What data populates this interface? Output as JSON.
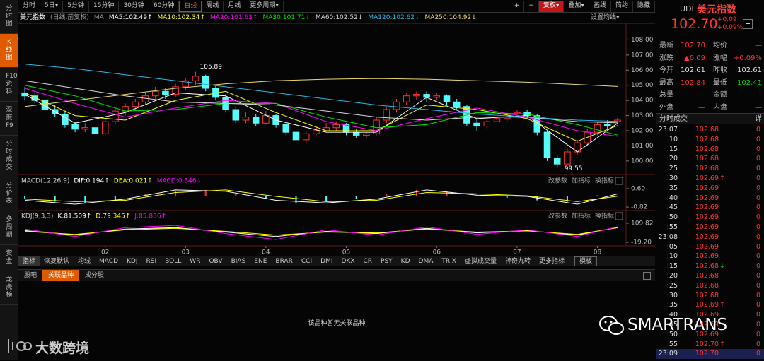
{
  "sidebar": {
    "tabs": [
      "分时图",
      "K线图",
      "F10资料",
      "深度F9",
      "分时成交",
      "分价表",
      "多周期",
      "资金",
      "龙虎榜"
    ],
    "active": 1
  },
  "toolbar": {
    "periods": [
      "分时",
      "5日▾",
      "5分钟",
      "15分钟",
      "30分钟",
      "60分钟",
      "日线",
      "周线",
      "月线",
      "更多周期▾"
    ],
    "active": 6,
    "tools": [
      "+",
      "−",
      "复权▾",
      "叠加▾",
      "画线",
      "简约",
      "隐藏"
    ],
    "highlight_tool": 2
  },
  "info": {
    "name": "美元指数",
    "note": "(日线,前复权)",
    "ma_tag": "MA",
    "settings": "设置均线▾"
  },
  "chart_data": {
    "type": "candlestick",
    "ylim": [
      99.2,
      109.0
    ],
    "yticks": [
      {
        "value": 108,
        "label": "108.00"
      },
      {
        "value": 107,
        "label": "107.00"
      },
      {
        "value": 106,
        "label": "106.00"
      },
      {
        "value": 105,
        "label": "105.00"
      },
      {
        "value": 104,
        "label": "104.00"
      },
      {
        "value": 103,
        "label": "103.00"
      },
      {
        "value": 102,
        "label": "102.00"
      },
      {
        "value": 101,
        "label": "101.00"
      },
      {
        "value": 100,
        "label": "100.00"
      }
    ],
    "up_color": "#ff3232",
    "down_color": "#54fcfc",
    "candles": [
      [
        104.5,
        104.9,
        104.0,
        104.3
      ],
      [
        104.3,
        104.6,
        103.8,
        104.0
      ],
      [
        104.0,
        104.2,
        103.2,
        103.4
      ],
      [
        103.4,
        103.7,
        102.9,
        103.1
      ],
      [
        103.1,
        103.3,
        102.2,
        102.4
      ],
      [
        102.4,
        102.6,
        101.9,
        102.1
      ],
      [
        102.1,
        102.5,
        101.9,
        102.2
      ],
      [
        102.2,
        102.4,
        101.3,
        101.8
      ],
      [
        101.8,
        102.8,
        101.6,
        102.6
      ],
      [
        102.6,
        103.5,
        102.4,
        103.3
      ],
      [
        103.3,
        103.8,
        103.0,
        103.6
      ],
      [
        103.6,
        104.1,
        103.3,
        103.9
      ],
      [
        103.9,
        104.5,
        103.7,
        104.3
      ],
      [
        104.3,
        104.9,
        104.1,
        104.6
      ],
      [
        104.6,
        104.8,
        104.1,
        104.4
      ],
      [
        104.4,
        105.1,
        104.2,
        104.9
      ],
      [
        104.9,
        105.5,
        104.7,
        105.3
      ],
      [
        105.3,
        105.89,
        105.0,
        105.6
      ],
      [
        105.6,
        105.7,
        104.6,
        104.8
      ],
      [
        104.8,
        105.0,
        104.0,
        104.2
      ],
      [
        104.2,
        104.4,
        103.2,
        103.4
      ],
      [
        103.4,
        103.6,
        102.5,
        102.7
      ],
      [
        102.7,
        103.2,
        102.5,
        102.9
      ],
      [
        102.9,
        103.1,
        102.3,
        102.5
      ],
      [
        102.5,
        103.3,
        102.4,
        103.0
      ],
      [
        103.0,
        103.1,
        102.2,
        102.4
      ],
      [
        102.4,
        102.6,
        101.7,
        101.9
      ],
      [
        101.9,
        102.1,
        101.1,
        101.4
      ],
      [
        101.4,
        102.0,
        101.2,
        101.8
      ],
      [
        101.8,
        102.3,
        101.6,
        102.0
      ],
      [
        102.0,
        102.5,
        101.9,
        102.2
      ],
      [
        102.2,
        102.6,
        102.0,
        102.4
      ],
      [
        102.4,
        102.5,
        101.7,
        101.9
      ],
      [
        101.9,
        102.1,
        101.5,
        101.7
      ],
      [
        101.7,
        102.0,
        101.5,
        101.8
      ],
      [
        101.8,
        102.9,
        101.7,
        102.7
      ],
      [
        102.7,
        103.6,
        102.5,
        103.4
      ],
      [
        103.4,
        104.1,
        103.2,
        103.9
      ],
      [
        103.9,
        104.5,
        103.7,
        104.3
      ],
      [
        104.3,
        104.6,
        104.0,
        104.4
      ],
      [
        104.4,
        104.6,
        103.9,
        104.2
      ],
      [
        104.2,
        104.5,
        104.0,
        104.3
      ],
      [
        104.3,
        104.4,
        103.7,
        103.9
      ],
      [
        103.9,
        104.1,
        103.4,
        103.6
      ],
      [
        103.6,
        103.7,
        102.3,
        102.5
      ],
      [
        102.5,
        102.8,
        102.0,
        102.3
      ],
      [
        102.3,
        102.8,
        102.1,
        102.6
      ],
      [
        102.6,
        103.0,
        102.4,
        102.8
      ],
      [
        102.8,
        103.3,
        102.6,
        103.1
      ],
      [
        103.1,
        103.4,
        102.9,
        103.2
      ],
      [
        103.2,
        103.4,
        102.8,
        103.0
      ],
      [
        103.0,
        103.1,
        101.7,
        101.9
      ],
      [
        101.9,
        102.0,
        100.0,
        100.2
      ],
      [
        100.2,
        100.4,
        99.55,
        99.8
      ],
      [
        99.8,
        100.8,
        99.7,
        100.6
      ],
      [
        100.6,
        101.4,
        100.4,
        101.2
      ],
      [
        101.2,
        102.1,
        101.0,
        101.9
      ],
      [
        101.9,
        102.6,
        101.7,
        102.4
      ],
      [
        102.4,
        102.7,
        102.1,
        102.3
      ],
      [
        102.61,
        102.84,
        102.41,
        102.7
      ]
    ],
    "high_label": "105.89",
    "low_label": "99.55",
    "month_ticks": [
      {
        "value": 8,
        "label": "02"
      },
      {
        "value": 16,
        "label": "03"
      },
      {
        "value": 24,
        "label": "04"
      },
      {
        "value": 32,
        "label": "05"
      },
      {
        "value": 41,
        "label": "06"
      },
      {
        "value": 49,
        "label": "07"
      },
      {
        "value": 57,
        "label": "08"
      }
    ],
    "ma_x": [
      0,
      5,
      10,
      15,
      20,
      25,
      30,
      35,
      40,
      45,
      50,
      55,
      59
    ],
    "series": [
      {
        "name": "MA5:102.49↑",
        "color": "#ffffff",
        "values": [
          104.4,
          102.5,
          103.2,
          104.5,
          104.3,
          102.7,
          101.9,
          101.9,
          104.2,
          102.8,
          103.0,
          100.6,
          102.49
        ]
      },
      {
        "name": "MA10:102.34↑",
        "color": "#ffff00",
        "values": [
          104.5,
          103.0,
          102.7,
          104.0,
          104.6,
          103.2,
          102.0,
          102.0,
          103.7,
          103.4,
          102.8,
          101.3,
          102.34
        ]
      },
      {
        "name": "MA20:101.63↑",
        "color": "#ff00ff",
        "values": [
          104.8,
          103.8,
          102.9,
          103.5,
          104.0,
          103.8,
          102.6,
          102.0,
          102.8,
          103.5,
          102.9,
          102.0,
          101.63
        ]
      },
      {
        "name": "MA30:101.71↓",
        "color": "#00e600",
        "values": [
          105.0,
          104.3,
          103.3,
          103.4,
          103.8,
          103.8,
          102.9,
          102.2,
          102.4,
          103.2,
          103.1,
          102.4,
          101.71
        ]
      },
      {
        "name": "MA60:102.52↓",
        "color": "#d8d8d8",
        "values": [
          105.3,
          104.8,
          104.3,
          103.9,
          103.8,
          103.7,
          103.3,
          102.9,
          102.7,
          102.9,
          102.9,
          102.6,
          102.52
        ]
      },
      {
        "name": "MA120:102.62↓",
        "color": "#22b8e8",
        "values": [
          106.4,
          106.1,
          105.7,
          105.3,
          104.9,
          104.5,
          104.1,
          103.7,
          103.4,
          103.1,
          102.9,
          102.7,
          102.62
        ]
      },
      {
        "name": "MA250:104.92↓",
        "color": "#e8d870",
        "values": [
          103.6,
          104.0,
          104.4,
          104.8,
          105.1,
          105.3,
          105.4,
          105.45,
          105.4,
          105.3,
          105.2,
          105.05,
          104.92
        ]
      }
    ]
  },
  "macd": {
    "title": "MACD(12,26,9)",
    "labels": [
      {
        "text": "DIF:0.194↑",
        "color": "#ffffff"
      },
      {
        "text": "DEA:0.021↑",
        "color": "#ffff00"
      },
      {
        "text": "MACD:0.346↓",
        "color": "#ff00ff"
      }
    ],
    "ylim": [
      -0.98,
      1.53
    ],
    "yticks": [
      {
        "value": 0.6,
        "label": "0.60"
      },
      -0.82
    ],
    "x": [
      0,
      5,
      10,
      15,
      20,
      25,
      30,
      35,
      40,
      45,
      50,
      55,
      59
    ],
    "dif": [
      -0.3,
      -0.6,
      -0.2,
      0.5,
      0.4,
      -0.3,
      -0.5,
      -0.2,
      0.5,
      0.1,
      0.0,
      -0.6,
      0.194
    ],
    "dea": [
      -0.2,
      -0.4,
      -0.3,
      0.3,
      0.5,
      0.0,
      -0.4,
      -0.3,
      0.3,
      0.2,
      0.05,
      -0.4,
      0.021
    ],
    "hist_x": [
      0,
      3,
      6,
      9,
      12,
      15,
      18,
      21,
      24,
      27,
      30,
      33,
      36,
      39,
      42,
      45,
      48,
      51,
      54,
      57
    ],
    "hist": [
      -0.2,
      -0.4,
      -0.5,
      -0.3,
      0.2,
      0.4,
      0.5,
      0.2,
      -0.2,
      -0.5,
      -0.4,
      -0.2,
      0.2,
      0.5,
      0.4,
      0.1,
      -0.1,
      -0.3,
      -0.4,
      0.1
    ]
  },
  "kdj": {
    "title": "KDJ(9,3,3)",
    "labels": [
      {
        "text": "K:81.509↑",
        "color": "#ffffff"
      },
      {
        "text": "D:79.345↑",
        "color": "#ffff00"
      },
      {
        "text": "J:85.836↑",
        "color": "#ff00ff"
      }
    ],
    "ylim": [
      -33.5,
      186.3
    ],
    "yticks": [
      109.82,
      {
        "value": -19.2,
        "label": "-19.20"
      }
    ],
    "x": [
      0,
      5,
      10,
      15,
      20,
      25,
      30,
      35,
      40,
      45,
      50,
      55,
      59
    ],
    "k": [
      60,
      30,
      70,
      80,
      50,
      20,
      55,
      40,
      75,
      45,
      60,
      30,
      81.5
    ],
    "d": [
      55,
      35,
      65,
      75,
      55,
      30,
      50,
      45,
      70,
      50,
      58,
      35,
      79.3
    ],
    "j": [
      70,
      20,
      80,
      95,
      40,
      0,
      65,
      30,
      85,
      35,
      65,
      20,
      85.8
    ]
  },
  "pane_buttons": [
    "改参数",
    "加指标",
    "换指标"
  ],
  "indicators": {
    "tabs": [
      "指标",
      "恢复默认",
      "均线",
      "MACD",
      "KDJ",
      "RSI",
      "BOLL",
      "WR",
      "OBV",
      "BIAS",
      "ENE",
      "BRAR",
      "CCI",
      "DMI",
      "DKX",
      "CR",
      "PSY",
      "KD",
      "DMA",
      "TRIX",
      "虚拟成交量",
      "神奇九转",
      "更多指标",
      "模板"
    ]
  },
  "bottom": {
    "tabs": [
      "股吧",
      "关联品种",
      "成分股"
    ],
    "active": 1,
    "empty": "该品种暂无关联品种"
  },
  "watermark": {
    "left": "大数跨境",
    "right": "SMARTRANS"
  },
  "quote": {
    "code": "UDI",
    "name": "美元指数",
    "price": "102.70",
    "change": "+0.09",
    "change_pct": "+0.09%",
    "rows": [
      {
        "cells": [
          "最新",
          "102.70",
          "均价",
          "—"
        ],
        "colors": [
          "#ff3333",
          "#00d000"
        ]
      },
      {
        "cells": [
          "涨跌",
          "▲0.09",
          "涨幅",
          "+0.09%"
        ],
        "colors": [
          "#ff3333",
          "#ff3333"
        ]
      },
      {
        "cells": [
          "今开",
          "102.61",
          "昨收",
          "102.61"
        ],
        "colors": [
          "#e0e0e0",
          "#e0e0e0"
        ]
      },
      {
        "cells": [
          "最高",
          "102.84",
          "最低",
          "102.41"
        ],
        "colors": [
          "#ff3333",
          "#00d000"
        ]
      },
      {
        "cells": [
          "总量",
          "—",
          "金额",
          "—"
        ],
        "colors": [
          "#00d000",
          "#00d000"
        ]
      },
      {
        "cells": [
          "外盘",
          "—",
          "内盘",
          "—"
        ],
        "colors": [
          "#00d000",
          "#00d000"
        ]
      }
    ]
  },
  "trades": {
    "title": "分时成交",
    "detail": "详",
    "rows": [
      {
        "time": "23:07",
        "price": "102.68",
        "vol": "0"
      },
      {
        "time": ":10",
        "price": "102.68",
        "vol": "0"
      },
      {
        "time": ":15",
        "price": "102.68",
        "vol": "0"
      },
      {
        "time": ":20",
        "price": "102.68",
        "vol": "0"
      },
      {
        "time": ":25",
        "price": "102.68",
        "vol": "0"
      },
      {
        "time": ":30",
        "price": "102.69",
        "arrow": "↑",
        "arrow_color": "#ff3333",
        "vol": "0"
      },
      {
        "time": ":35",
        "price": "102.69",
        "vol": "0"
      },
      {
        "time": ":40",
        "price": "102.69",
        "vol": "0"
      },
      {
        "time": ":45",
        "price": "102.69",
        "vol": "0"
      },
      {
        "time": ":50",
        "price": "102.69",
        "vol": "0"
      },
      {
        "time": ":55",
        "price": "102.69",
        "vol": "0"
      },
      {
        "time": "23:08",
        "price": "102.69",
        "vol": "0"
      },
      {
        "time": ":05",
        "price": "102.69",
        "vol": "0"
      },
      {
        "time": ":10",
        "price": "102.69",
        "vol": "0"
      },
      {
        "time": ":15",
        "price": "102.68",
        "arrow": "↓",
        "arrow_color": "#00d000",
        "vol": "0"
      },
      {
        "time": ":20",
        "price": "102.68",
        "vol": "0"
      },
      {
        "time": ":25",
        "price": "102.68",
        "vol": "0"
      },
      {
        "time": ":30",
        "price": "102.68",
        "vol": "0"
      },
      {
        "time": ":35",
        "price": "102.69",
        "arrow": "↑",
        "arrow_color": "#ff3333",
        "vol": "0"
      },
      {
        "time": ":40",
        "price": "102.69",
        "vol": "0"
      },
      {
        "time": ":45",
        "price": "102.69",
        "vol": "0"
      },
      {
        "time": ":50",
        "price": "102.69",
        "vol": "0"
      },
      {
        "time": ":55",
        "price": "102.70",
        "arrow": "↑",
        "arrow_color": "#ff3333",
        "vol": "0"
      },
      {
        "time": "23:09",
        "price": "102.70",
        "vol": "0"
      }
    ]
  }
}
